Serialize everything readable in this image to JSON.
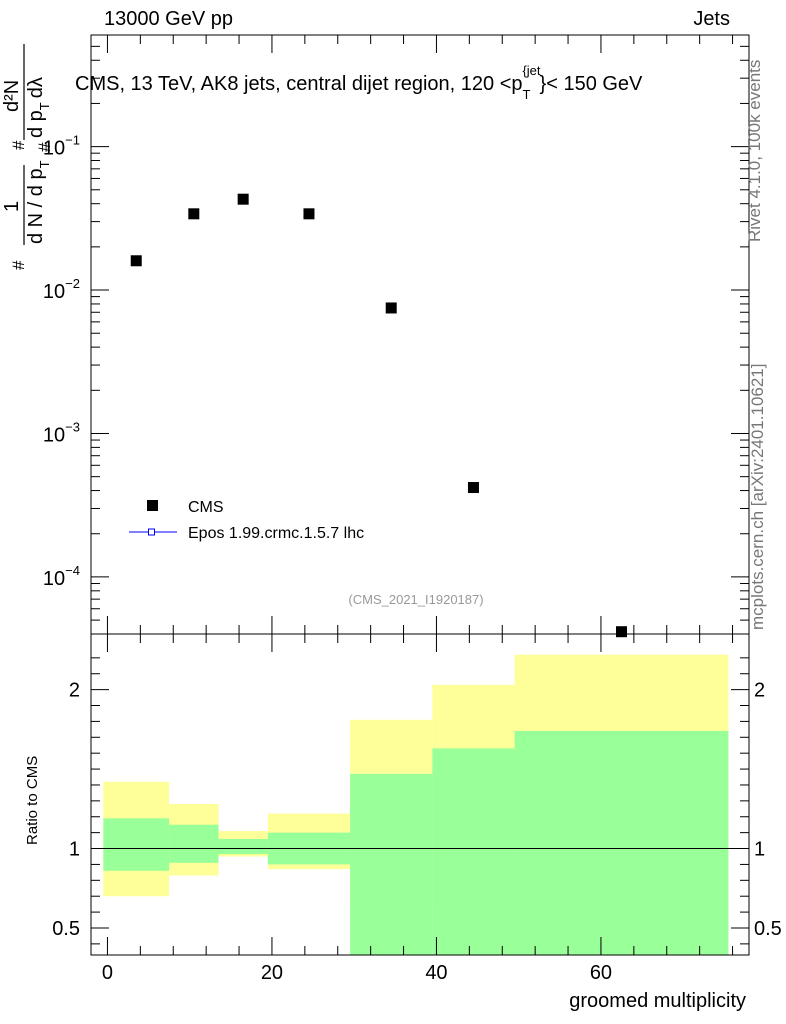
{
  "header": {
    "left": "13000 GeV pp",
    "right": "Jets"
  },
  "side": {
    "rivet": "Rivet 4.1.0,  100k events",
    "mcplots": "mcplots.cern.ch [arXiv:2401.10621]"
  },
  "chart_data": {
    "type": "scatter",
    "title": "CMS, 13 TeV, AK8 jets, central dijet region, 120 <p_T^{jet}< 150 GeV",
    "title_parts": {
      "main": "CMS, 13 TeV, AK8 jets, central dijet region, 120 <p",
      "sub": "T",
      "sup": "{jet",
      "tail": "}< 150 GeV"
    },
    "xlabel": "groomed multiplicity",
    "ylabel": "1/N dN/dp_T d^2N/dp_T dλ",
    "ylabel_parts": {
      "frac_num": "1",
      "frac_den": "d N / d p",
      "frac_den_sub": "T",
      "hash1": "#",
      "hash2": "#",
      "hash3": "#",
      "num2": "d²N",
      "den2_d": "d p",
      "den2_sub": "T",
      "den2_lambda": "dλ"
    },
    "ratio_ylabel": "Ratio to CMS",
    "analysis_id": "(CMS_2021_I1920187)",
    "xlim": [
      -2,
      78
    ],
    "ylim": [
      4e-05,
      0.6
    ],
    "yscale": "log",
    "ratio_ylim": [
      0.33,
      2.35
    ],
    "x_ticks": [
      0,
      20,
      40,
      60
    ],
    "x_tick_labels": [
      "0",
      "20",
      "40",
      "60"
    ],
    "y_ticks": [
      0.0001,
      0.001,
      0.01,
      0.1
    ],
    "y_tick_labels": [
      {
        "base": "10",
        "exp": "−4"
      },
      {
        "base": "10",
        "exp": "−3"
      },
      {
        "base": "10",
        "exp": "−2"
      },
      {
        "base": "10",
        "exp": "−1"
      }
    ],
    "ratio_ticks": [
      0.5,
      1,
      2
    ],
    "ratio_tick_labels": [
      "0.5",
      "1",
      "2"
    ],
    "legend": [
      {
        "name": "CMS",
        "marker": "square",
        "color": "#000000"
      },
      {
        "name": "Epos 1.99.crmc.1.5.7 lhc",
        "marker": "line-open-square",
        "color": "#0000ff"
      }
    ],
    "series": [
      {
        "name": "CMS",
        "x": [
          3.5,
          10.5,
          16.5,
          24.5,
          34.5,
          44.5,
          62.5
        ],
        "y": [
          0.016,
          0.034,
          0.043,
          0.034,
          0.0075,
          0.00042,
          4.15e-05
        ]
      }
    ],
    "ratio_bands": {
      "bins": [
        [
          -0.5,
          7.5
        ],
        [
          7.5,
          13.5
        ],
        [
          13.5,
          19.5
        ],
        [
          19.5,
          29.5
        ],
        [
          29.5,
          39.5
        ],
        [
          39.5,
          49.5
        ],
        [
          49.5,
          75.5
        ]
      ],
      "stat": {
        "color": "#99ff99",
        "lo": [
          0.86,
          0.91,
          0.965,
          0.9,
          0.33,
          0.33,
          0.33
        ],
        "hi": [
          1.19,
          1.15,
          1.06,
          1.1,
          1.47,
          1.63,
          1.74
        ]
      },
      "total": {
        "color": "#ffff99",
        "lo": [
          0.7,
          0.83,
          0.95,
          0.87,
          0.66,
          0.44,
          0.33
        ],
        "hi": [
          1.42,
          1.28,
          1.11,
          1.22,
          1.81,
          2.03,
          2.22
        ]
      }
    }
  }
}
